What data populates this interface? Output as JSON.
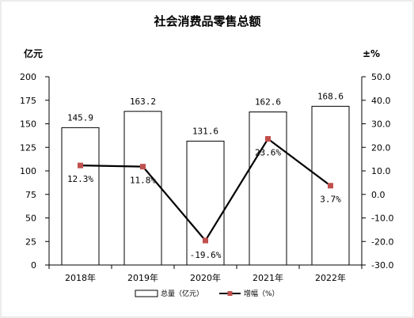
{
  "chart_data": {
    "type": "bar",
    "title": "社会消费品零售总额",
    "y_left_unit": "亿元",
    "y_right_unit": "±%",
    "categories": [
      "2018年",
      "2019年",
      "2020年",
      "2021年",
      "2022年"
    ],
    "series": [
      {
        "name": "总量（亿元）",
        "type": "bar",
        "axis": "left",
        "values": [
          145.9,
          163.2,
          131.6,
          162.6,
          168.6
        ],
        "labels": [
          "145.9",
          "163.2",
          "131.6",
          "162.6",
          "168.6"
        ]
      },
      {
        "name": "增幅（%）",
        "type": "line",
        "axis": "right",
        "values": [
          12.3,
          11.8,
          -19.6,
          23.6,
          3.7
        ],
        "labels": [
          "12.3%",
          "11.8%",
          "-19.6%",
          "23.6%",
          "3.7%"
        ],
        "color": "#c0504d"
      }
    ],
    "y_left": {
      "min": 0,
      "max": 200,
      "ticks": [
        "0",
        "25",
        "50",
        "75",
        "100",
        "125",
        "150",
        "175",
        "200"
      ]
    },
    "y_right": {
      "min": -30,
      "max": 50,
      "ticks": [
        "-30.0",
        "-20.0",
        "-10.0",
        "0.0",
        "10.0",
        "20.0",
        "30.0",
        "40.0",
        "50.0"
      ]
    },
    "grid": false,
    "legend_position": "bottom"
  }
}
